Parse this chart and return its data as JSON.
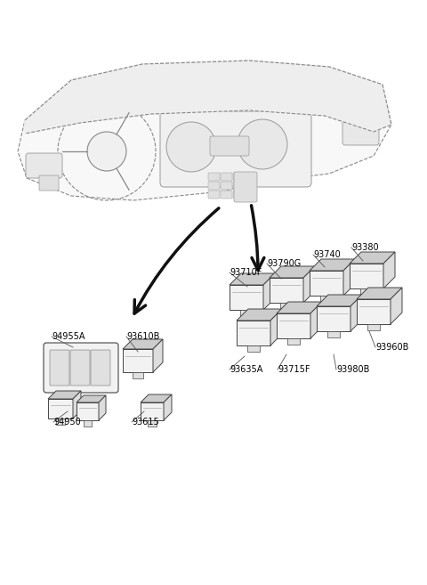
{
  "bg_color": "#ffffff",
  "line_color": "#444444",
  "text_color": "#000000",
  "fig_width": 4.8,
  "fig_height": 6.57,
  "dpi": 100,
  "switch_face_color": "#f2f2f2",
  "switch_top_color": "#cccccc",
  "switch_side_color": "#dddddd",
  "dash_color": "#888888",
  "arrow_color": "#111111",
  "right_switches": [
    {
      "id": "93710F",
      "col": 0,
      "row": 0
    },
    {
      "id": "93790G",
      "col": 1,
      "row": 0
    },
    {
      "id": "93740",
      "col": 2,
      "row": 0
    },
    {
      "id": "93380",
      "col": 3,
      "row": 0
    },
    {
      "id": "93635A",
      "col": 0,
      "row": 1
    },
    {
      "id": "93715F",
      "col": 1,
      "row": 1
    },
    {
      "id": "93980B",
      "col": 2,
      "row": 1
    },
    {
      "id": "93960B",
      "col": 3,
      "row": 1
    }
  ],
  "right_label_offsets": {
    "93710F": [
      -0.01,
      0.09,
      "left"
    ],
    "93790G": [
      0.0,
      0.09,
      "left"
    ],
    "93740": [
      0.01,
      0.09,
      "left"
    ],
    "93380": [
      0.05,
      0.09,
      "left"
    ],
    "93635A": [
      -0.01,
      -0.07,
      "left"
    ],
    "93715F": [
      0.02,
      -0.07,
      "left"
    ],
    "93980B": [
      0.0,
      -0.07,
      "left"
    ],
    "93960B": [
      0.06,
      -0.04,
      "left"
    ]
  }
}
